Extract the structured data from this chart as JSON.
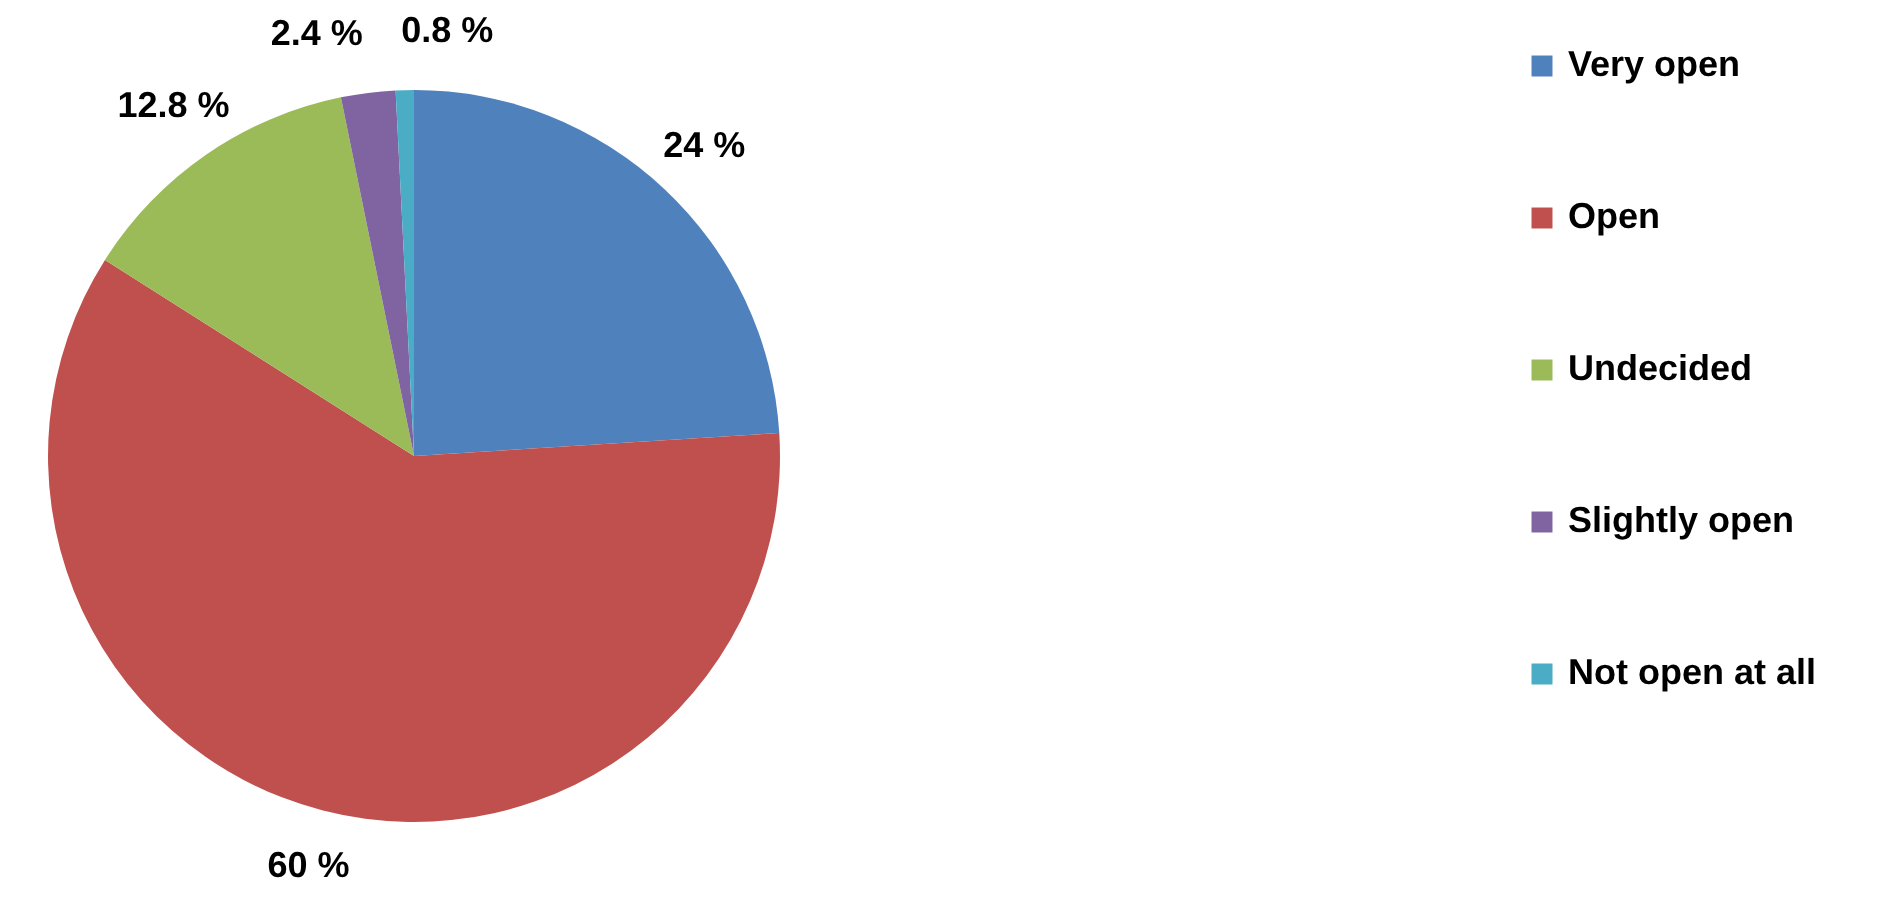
{
  "chart_data": {
    "type": "pie",
    "categories": [
      "Very open",
      "Open",
      "Undecided",
      "Slightly open",
      "Not open at all"
    ],
    "values": [
      24,
      60,
      12.8,
      2.4,
      0.8
    ],
    "colors": [
      "#4f81bd",
      "#c0504d",
      "#9bbb59",
      "#8064a2",
      "#4bacc6"
    ],
    "value_labels": [
      "24 %",
      "60 %",
      "12.8 %",
      "2.4 %",
      "0.8 %"
    ],
    "legend": "right"
  }
}
